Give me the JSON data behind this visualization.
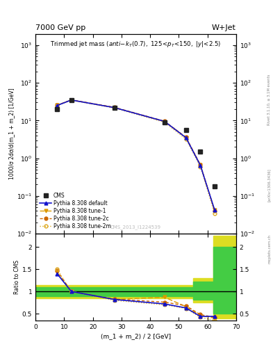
{
  "title_left": "7000 GeV pp",
  "title_right": "W+Jet",
  "plot_title_line1": "Trimmed jet mass",
  "plot_title_line2": "(anti-k_{T}(0.7), 125<p_{T}<150, |y|<2.5)",
  "ylabel_main": "1000/σ 2dσ/d(m_1 + m_2) [1/GeV]",
  "ylabel_ratio": "Ratio to CMS",
  "xlabel": "(m_1 + m_2) / 2 [GeV]",
  "watermark": "CMS_2013_I1224539",
  "x_data": [
    7.5,
    12.5,
    27.5,
    45.0,
    52.5,
    57.5,
    62.5
  ],
  "cms_data": [
    20.0,
    35.0,
    22.0,
    9.0,
    5.5,
    1.5,
    0.18
  ],
  "pythia_default": [
    25.0,
    35.0,
    22.0,
    9.5,
    3.5,
    0.65,
    0.042
  ],
  "pythia_tune1": [
    25.5,
    35.0,
    22.0,
    9.5,
    3.55,
    0.66,
    0.042
  ],
  "pythia_tune2c": [
    25.5,
    35.5,
    22.5,
    9.6,
    3.6,
    0.68,
    0.04
  ],
  "pythia_tune2m": [
    25.0,
    34.5,
    21.5,
    9.0,
    3.2,
    0.6,
    0.034
  ],
  "ratio_default": [
    1.4,
    1.0,
    0.82,
    0.72,
    0.63,
    0.44,
    0.44
  ],
  "ratio_tune1": [
    1.43,
    1.0,
    0.82,
    0.87,
    0.66,
    0.46,
    0.4
  ],
  "ratio_tune2c": [
    1.47,
    1.0,
    0.83,
    0.76,
    0.68,
    0.48,
    0.42
  ],
  "ratio_tune2m": [
    1.5,
    1.0,
    0.8,
    0.7,
    0.62,
    0.42,
    0.35
  ],
  "color_cms": "#222222",
  "color_default": "#1111cc",
  "color_tune1": "#dd9900",
  "color_tune2c": "#cc6600",
  "color_tune2m": "#ddaa22",
  "color_green": "#44cc44",
  "color_yellow": "#dddd22",
  "xlim": [
    0,
    70
  ],
  "ylim_main": [
    0.01,
    2000
  ],
  "ylim_ratio": [
    0.35,
    2.3
  ],
  "ratio_yticks": [
    0.5,
    1.0,
    1.5,
    2.0
  ],
  "ratio_yticklabels": [
    "0.5",
    "1",
    "1.5",
    "2"
  ]
}
